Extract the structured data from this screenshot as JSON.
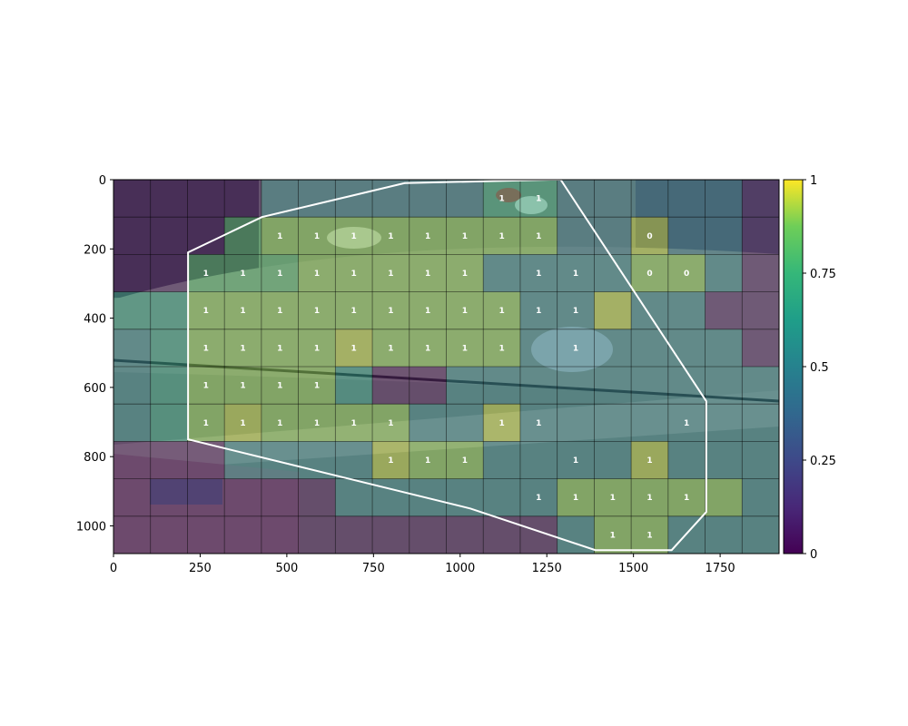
{
  "chart_data": {
    "type": "heatmap",
    "title": "",
    "xlabel": "",
    "ylabel": "",
    "xlim": [
      0,
      1920
    ],
    "ylim": [
      1080,
      0
    ],
    "x_ticks": [
      0,
      250,
      500,
      750,
      1000,
      1250,
      1500,
      1750
    ],
    "y_ticks": [
      0,
      200,
      400,
      600,
      800,
      1000
    ],
    "grid": {
      "cols": 18,
      "rows": 10,
      "cell_width": 106.67,
      "cell_height": 108
    },
    "colormap": "viridis",
    "colorbar": {
      "min": 0,
      "max": 1,
      "ticks": [
        0,
        0.25,
        0.5,
        0.75,
        1
      ],
      "tick_labels": [
        "0",
        "0.25",
        "0.5",
        "0.75",
        "1"
      ]
    },
    "background_photo": "street-intersection-camera-view",
    "values": [
      [
        0.05,
        0.05,
        0.05,
        0.05,
        0.45,
        0.45,
        0.45,
        0.45,
        0.45,
        0.45,
        0.7,
        0.7,
        0.45,
        0.45,
        0.45,
        0.45,
        0.45,
        0.05
      ],
      [
        0.05,
        0.05,
        0.05,
        0.8,
        0.9,
        0.9,
        0.9,
        0.9,
        0.9,
        0.9,
        0.9,
        0.9,
        0.45,
        0.45,
        0.95,
        0.45,
        0.45,
        0.05
      ],
      [
        0.05,
        0.05,
        0.8,
        0.8,
        0.8,
        0.9,
        0.9,
        0.9,
        0.9,
        0.9,
        0.5,
        0.5,
        0.5,
        0.5,
        0.9,
        0.9,
        0.5,
        0.05
      ],
      [
        0.65,
        0.65,
        0.9,
        0.9,
        0.9,
        0.9,
        0.9,
        0.9,
        0.9,
        0.9,
        0.9,
        0.5,
        0.5,
        0.95,
        0.5,
        0.5,
        0.05,
        0.05
      ],
      [
        0.5,
        0.65,
        0.9,
        0.9,
        0.9,
        0.9,
        0.95,
        0.9,
        0.9,
        0.9,
        0.9,
        0.5,
        0.5,
        0.5,
        0.5,
        0.5,
        0.5,
        0.05
      ],
      [
        0.5,
        0.65,
        0.9,
        0.9,
        0.9,
        0.9,
        0.6,
        0.02,
        0.02,
        0.5,
        0.5,
        0.5,
        0.5,
        0.5,
        0.5,
        0.5,
        0.5,
        0.5
      ],
      [
        0.5,
        0.65,
        0.9,
        0.95,
        0.9,
        0.9,
        0.9,
        0.9,
        0.5,
        0.5,
        0.95,
        0.5,
        0.5,
        0.5,
        0.5,
        0.5,
        0.5,
        0.5
      ],
      [
        0.02,
        0.02,
        0.02,
        0.5,
        0.5,
        0.5,
        0.5,
        0.95,
        0.9,
        0.9,
        0.5,
        0.5,
        0.5,
        0.5,
        0.95,
        0.5,
        0.5,
        0.5
      ],
      [
        0.02,
        0.02,
        0.02,
        0.02,
        0.02,
        0.02,
        0.5,
        0.5,
        0.5,
        0.5,
        0.5,
        0.5,
        0.9,
        0.9,
        0.9,
        0.9,
        0.9,
        0.5
      ],
      [
        0.02,
        0.02,
        0.02,
        0.02,
        0.02,
        0.02,
        0.02,
        0.02,
        0.02,
        0.02,
        0.02,
        0.02,
        0.5,
        0.9,
        0.9,
        0.5,
        0.5,
        0.5
      ]
    ],
    "cell_labels": [
      {
        "row": 0,
        "col": 10,
        "text": "1"
      },
      {
        "row": 0,
        "col": 11,
        "text": "1"
      },
      {
        "row": 1,
        "col": 4,
        "text": "1"
      },
      {
        "row": 1,
        "col": 5,
        "text": "1"
      },
      {
        "row": 1,
        "col": 6,
        "text": "1"
      },
      {
        "row": 1,
        "col": 7,
        "text": "1"
      },
      {
        "row": 1,
        "col": 8,
        "text": "1"
      },
      {
        "row": 1,
        "col": 9,
        "text": "1"
      },
      {
        "row": 1,
        "col": 10,
        "text": "1"
      },
      {
        "row": 1,
        "col": 11,
        "text": "1"
      },
      {
        "row": 1,
        "col": 14,
        "text": "0"
      },
      {
        "row": 2,
        "col": 2,
        "text": "1"
      },
      {
        "row": 2,
        "col": 3,
        "text": "1"
      },
      {
        "row": 2,
        "col": 4,
        "text": "1"
      },
      {
        "row": 2,
        "col": 5,
        "text": "1"
      },
      {
        "row": 2,
        "col": 6,
        "text": "1"
      },
      {
        "row": 2,
        "col": 7,
        "text": "1"
      },
      {
        "row": 2,
        "col": 8,
        "text": "1"
      },
      {
        "row": 2,
        "col": 9,
        "text": "1"
      },
      {
        "row": 2,
        "col": 11,
        "text": "1"
      },
      {
        "row": 2,
        "col": 12,
        "text": "1"
      },
      {
        "row": 2,
        "col": 14,
        "text": "0"
      },
      {
        "row": 2,
        "col": 15,
        "text": "0"
      },
      {
        "row": 3,
        "col": 2,
        "text": "1"
      },
      {
        "row": 3,
        "col": 3,
        "text": "1"
      },
      {
        "row": 3,
        "col": 4,
        "text": "1"
      },
      {
        "row": 3,
        "col": 5,
        "text": "1"
      },
      {
        "row": 3,
        "col": 6,
        "text": "1"
      },
      {
        "row": 3,
        "col": 7,
        "text": "1"
      },
      {
        "row": 3,
        "col": 8,
        "text": "1"
      },
      {
        "row": 3,
        "col": 9,
        "text": "1"
      },
      {
        "row": 3,
        "col": 10,
        "text": "1"
      },
      {
        "row": 3,
        "col": 11,
        "text": "1"
      },
      {
        "row": 3,
        "col": 12,
        "text": "1"
      },
      {
        "row": 4,
        "col": 2,
        "text": "1"
      },
      {
        "row": 4,
        "col": 3,
        "text": "1"
      },
      {
        "row": 4,
        "col": 4,
        "text": "1"
      },
      {
        "row": 4,
        "col": 5,
        "text": "1"
      },
      {
        "row": 4,
        "col": 6,
        "text": "1"
      },
      {
        "row": 4,
        "col": 7,
        "text": "1"
      },
      {
        "row": 4,
        "col": 8,
        "text": "1"
      },
      {
        "row": 4,
        "col": 9,
        "text": "1"
      },
      {
        "row": 4,
        "col": 10,
        "text": "1"
      },
      {
        "row": 4,
        "col": 12,
        "text": "1"
      },
      {
        "row": 5,
        "col": 2,
        "text": "1"
      },
      {
        "row": 5,
        "col": 3,
        "text": "1"
      },
      {
        "row": 5,
        "col": 4,
        "text": "1"
      },
      {
        "row": 5,
        "col": 5,
        "text": "1"
      },
      {
        "row": 6,
        "col": 2,
        "text": "1"
      },
      {
        "row": 6,
        "col": 3,
        "text": "1"
      },
      {
        "row": 6,
        "col": 4,
        "text": "1"
      },
      {
        "row": 6,
        "col": 5,
        "text": "1"
      },
      {
        "row": 6,
        "col": 6,
        "text": "1"
      },
      {
        "row": 6,
        "col": 7,
        "text": "1"
      },
      {
        "row": 6,
        "col": 10,
        "text": "1"
      },
      {
        "row": 6,
        "col": 11,
        "text": "1"
      },
      {
        "row": 6,
        "col": 15,
        "text": "1"
      },
      {
        "row": 7,
        "col": 7,
        "text": "1"
      },
      {
        "row": 7,
        "col": 8,
        "text": "1"
      },
      {
        "row": 7,
        "col": 9,
        "text": "1"
      },
      {
        "row": 7,
        "col": 12,
        "text": "1"
      },
      {
        "row": 7,
        "col": 14,
        "text": "1"
      },
      {
        "row": 8,
        "col": 11,
        "text": "1"
      },
      {
        "row": 8,
        "col": 12,
        "text": "1"
      },
      {
        "row": 8,
        "col": 13,
        "text": "1"
      },
      {
        "row": 8,
        "col": 14,
        "text": "1"
      },
      {
        "row": 8,
        "col": 15,
        "text": "1"
      },
      {
        "row": 9,
        "col": 13,
        "text": "1"
      },
      {
        "row": 9,
        "col": 14,
        "text": "1"
      }
    ],
    "region_polygon": [
      [
        215,
        210
      ],
      [
        428,
        108
      ],
      [
        840,
        10
      ],
      [
        1260,
        0
      ],
      [
        1290,
        0
      ],
      [
        1710,
        640
      ],
      [
        1710,
        960
      ],
      [
        1610,
        1070
      ],
      [
        1390,
        1070
      ],
      [
        1030,
        950
      ],
      [
        215,
        750
      ]
    ]
  }
}
